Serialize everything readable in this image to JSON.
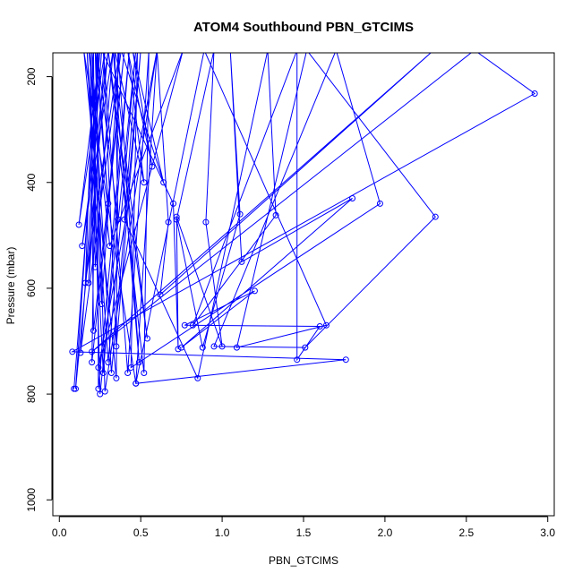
{
  "chart_data": {
    "type": "line",
    "title": "ATOM4 Southbound PBN_GTCIMS",
    "xlabel": "PBN_GTCIMS",
    "ylabel": "Pressure (mbar)",
    "xlim": [
      -0.04,
      3.04
    ],
    "ylim": [
      1030,
      155
    ],
    "y_reversed": true,
    "grid": false,
    "xticks": [
      0.0,
      0.5,
      1.0,
      1.5,
      2.0,
      2.5,
      3.0
    ],
    "xtick_labels": [
      "0.0",
      "0.5",
      "1.0",
      "1.5",
      "2.0",
      "2.5",
      "3.0"
    ],
    "yticks": [
      200,
      400,
      600,
      800,
      1000
    ],
    "ytick_labels": [
      "200",
      "400",
      "600",
      "800",
      "1000"
    ],
    "series": [
      {
        "marker": "open-circle",
        "color": "#0000ff",
        "points": [
          [
            0.09,
            790
          ],
          [
            0.25,
            150
          ],
          [
            0.12,
            480
          ],
          [
            0.28,
            150
          ],
          [
            0.18,
            590
          ],
          [
            0.24,
            150
          ],
          [
            0.1,
            790
          ],
          [
            0.3,
            150
          ],
          [
            0.14,
            520
          ],
          [
            0.33,
            150
          ],
          [
            0.22,
            560
          ],
          [
            0.21,
            150
          ],
          [
            0.16,
            590
          ],
          [
            0.37,
            150
          ],
          [
            0.26,
            630
          ],
          [
            0.19,
            150
          ],
          [
            0.21,
            680
          ],
          [
            0.4,
            150
          ],
          [
            0.2,
            740
          ],
          [
            0.23,
            150
          ],
          [
            0.24,
            790
          ],
          [
            0.43,
            150
          ],
          [
            0.27,
            760
          ],
          [
            0.17,
            150
          ],
          [
            0.3,
            740
          ],
          [
            0.47,
            150
          ],
          [
            0.25,
            800
          ],
          [
            0.2,
            150
          ],
          [
            0.32,
            760
          ],
          [
            0.5,
            150
          ],
          [
            0.35,
            710
          ],
          [
            0.27,
            150
          ],
          [
            0.42,
            760
          ],
          [
            0.55,
            150
          ],
          [
            0.52,
            760
          ],
          [
            0.3,
            150
          ],
          [
            0.54,
            695
          ],
          [
            0.33,
            150
          ],
          [
            0.49,
            740
          ],
          [
            0.36,
            150
          ],
          [
            0.35,
            770
          ],
          [
            0.15,
            150
          ],
          [
            0.47,
            780
          ],
          [
            0.6,
            150
          ],
          [
            0.28,
            795
          ],
          [
            0.22,
            150
          ],
          [
            0.3,
            440
          ],
          [
            0.23,
            150
          ],
          [
            0.36,
            470
          ],
          [
            0.34,
            150
          ],
          [
            0.52,
            400
          ],
          [
            0.42,
            150
          ],
          [
            0.57,
            370
          ],
          [
            0.45,
            150
          ],
          [
            0.64,
            400
          ],
          [
            0.38,
            150
          ],
          [
            0.13,
            722
          ],
          [
            0.26,
            150
          ],
          [
            0.7,
            440
          ],
          [
            0.73,
            715
          ],
          [
            0.72,
            465
          ],
          [
            1.0,
            710
          ],
          [
            0.9,
            475
          ],
          [
            0.95,
            150
          ],
          [
            0.72,
            470
          ],
          [
            0.88,
            712
          ],
          [
            1.11,
            460
          ],
          [
            1.05,
            150
          ],
          [
            1.12,
            550
          ],
          [
            1.8,
            430
          ],
          [
            0.75,
            712
          ],
          [
            1.2,
            605
          ],
          [
            0.77,
            670
          ],
          [
            1.6,
            672
          ],
          [
            1.46,
            735
          ],
          [
            1.46,
            150
          ],
          [
            0.82,
            670
          ],
          [
            1.33,
            462
          ],
          [
            1.28,
            150
          ],
          [
            0.85,
            770
          ],
          [
            0.4,
            470
          ],
          [
            0.48,
            150
          ],
          [
            0.44,
            750
          ],
          [
            1.97,
            440
          ],
          [
            1.7,
            150
          ],
          [
            0.95,
            710
          ],
          [
            1.51,
            712
          ],
          [
            2.31,
            465
          ],
          [
            1.52,
            150
          ],
          [
            1.09,
            712
          ],
          [
            1.64,
            670
          ],
          [
            0.89,
            150
          ],
          [
            0.47,
            780
          ],
          [
            1.76,
            735
          ],
          [
            0.08,
            720
          ],
          [
            2.92,
            232
          ],
          [
            2.55,
            150
          ],
          [
            0.2,
            720
          ],
          [
            2.3,
            150
          ],
          [
            0.62,
            612
          ],
          [
            0.67,
            475
          ],
          [
            0.6,
            150
          ],
          [
            0.24,
            750
          ],
          [
            0.76,
            150
          ],
          [
            0.31,
            520
          ],
          [
            0.18,
            150
          ]
        ]
      }
    ]
  }
}
